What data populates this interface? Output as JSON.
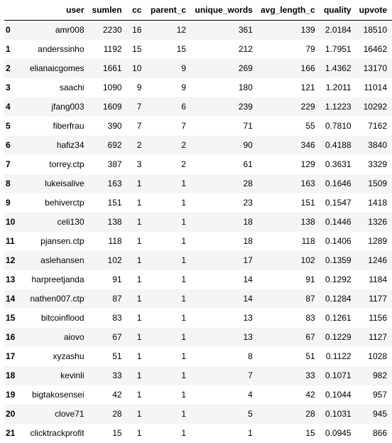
{
  "table": {
    "index_header": "",
    "columns": [
      "user",
      "sumlen",
      "cc",
      "parent_c",
      "unique_words",
      "avg_length_c",
      "quality",
      "upvote"
    ],
    "rows": [
      {
        "index": "0",
        "cells": [
          "amr008",
          "2230",
          "16",
          "12",
          "361",
          "139",
          "2.0184",
          "18510"
        ]
      },
      {
        "index": "1",
        "cells": [
          "anderssinho",
          "1192",
          "15",
          "15",
          "212",
          "79",
          "1.7951",
          "16462"
        ]
      },
      {
        "index": "2",
        "cells": [
          "elianaicgomes",
          "1661",
          "10",
          "9",
          "269",
          "166",
          "1.4362",
          "13170"
        ]
      },
      {
        "index": "3",
        "cells": [
          "saachi",
          "1090",
          "9",
          "9",
          "180",
          "121",
          "1.2011",
          "11014"
        ]
      },
      {
        "index": "4",
        "cells": [
          "jfang003",
          "1609",
          "7",
          "6",
          "239",
          "229",
          "1.1223",
          "10292"
        ]
      },
      {
        "index": "5",
        "cells": [
          "fiberfrau",
          "390",
          "7",
          "7",
          "71",
          "55",
          "0.7810",
          "7162"
        ]
      },
      {
        "index": "6",
        "cells": [
          "hafiz34",
          "692",
          "2",
          "2",
          "90",
          "346",
          "0.4188",
          "3840"
        ]
      },
      {
        "index": "7",
        "cells": [
          "torrey.ctp",
          "387",
          "3",
          "2",
          "61",
          "129",
          "0.3631",
          "3329"
        ]
      },
      {
        "index": "8",
        "cells": [
          "lukeisalive",
          "163",
          "1",
          "1",
          "28",
          "163",
          "0.1646",
          "1509"
        ]
      },
      {
        "index": "9",
        "cells": [
          "behiverctp",
          "151",
          "1",
          "1",
          "23",
          "151",
          "0.1547",
          "1418"
        ]
      },
      {
        "index": "10",
        "cells": [
          "celi130",
          "138",
          "1",
          "1",
          "18",
          "138",
          "0.1446",
          "1326"
        ]
      },
      {
        "index": "11",
        "cells": [
          "pjansen.ctp",
          "118",
          "1",
          "1",
          "18",
          "118",
          "0.1406",
          "1289"
        ]
      },
      {
        "index": "12",
        "cells": [
          "aslehansen",
          "102",
          "1",
          "1",
          "17",
          "102",
          "0.1359",
          "1246"
        ]
      },
      {
        "index": "13",
        "cells": [
          "harpreetjanda",
          "91",
          "1",
          "1",
          "14",
          "91",
          "0.1292",
          "1184"
        ]
      },
      {
        "index": "14",
        "cells": [
          "nathen007.ctp",
          "87",
          "1",
          "1",
          "14",
          "87",
          "0.1284",
          "1177"
        ]
      },
      {
        "index": "15",
        "cells": [
          "bitcoinflood",
          "83",
          "1",
          "1",
          "13",
          "83",
          "0.1261",
          "1156"
        ]
      },
      {
        "index": "16",
        "cells": [
          "aiovo",
          "67",
          "1",
          "1",
          "13",
          "67",
          "0.1229",
          "1127"
        ]
      },
      {
        "index": "17",
        "cells": [
          "xyzashu",
          "51",
          "1",
          "1",
          "8",
          "51",
          "0.1122",
          "1028"
        ]
      },
      {
        "index": "18",
        "cells": [
          "kevinli",
          "33",
          "1",
          "1",
          "7",
          "33",
          "0.1071",
          "982"
        ]
      },
      {
        "index": "19",
        "cells": [
          "bigtakosensei",
          "42",
          "1",
          "1",
          "4",
          "42",
          "0.1044",
          "957"
        ]
      },
      {
        "index": "20",
        "cells": [
          "clove71",
          "28",
          "1",
          "1",
          "5",
          "28",
          "0.1031",
          "945"
        ]
      },
      {
        "index": "21",
        "cells": [
          "clicktrackprofit",
          "15",
          "1",
          "1",
          "1",
          "15",
          "0.0945",
          "866"
        ]
      }
    ]
  }
}
